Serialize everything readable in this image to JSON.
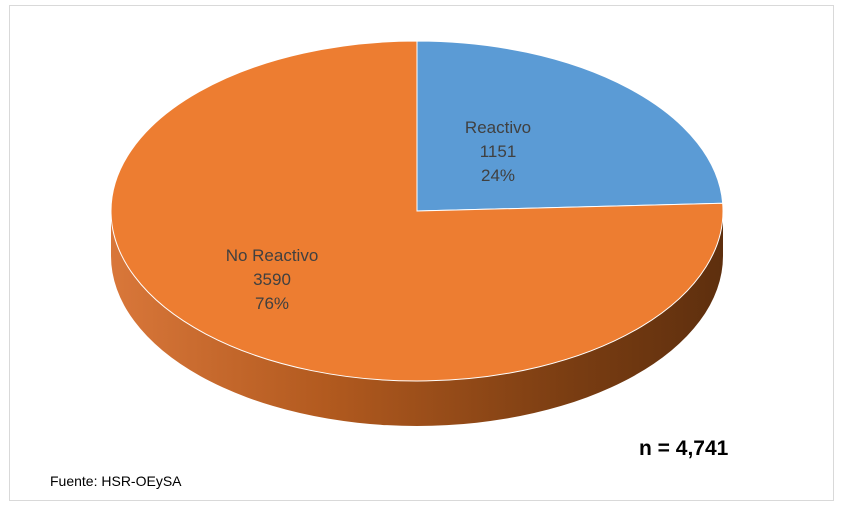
{
  "chart_data": {
    "type": "pie",
    "style": "3d",
    "title": "",
    "slices": [
      {
        "label": "Reactivo",
        "value": 1151,
        "percent": "24%",
        "color": "#5b9bd5"
      },
      {
        "label": "No Reactivo",
        "value": 3590,
        "percent": "76%",
        "color": "#ed7d31"
      }
    ],
    "annotations": {
      "sample_size": "n = 4,741",
      "source": "Fuente: HSR-OEySA"
    }
  }
}
